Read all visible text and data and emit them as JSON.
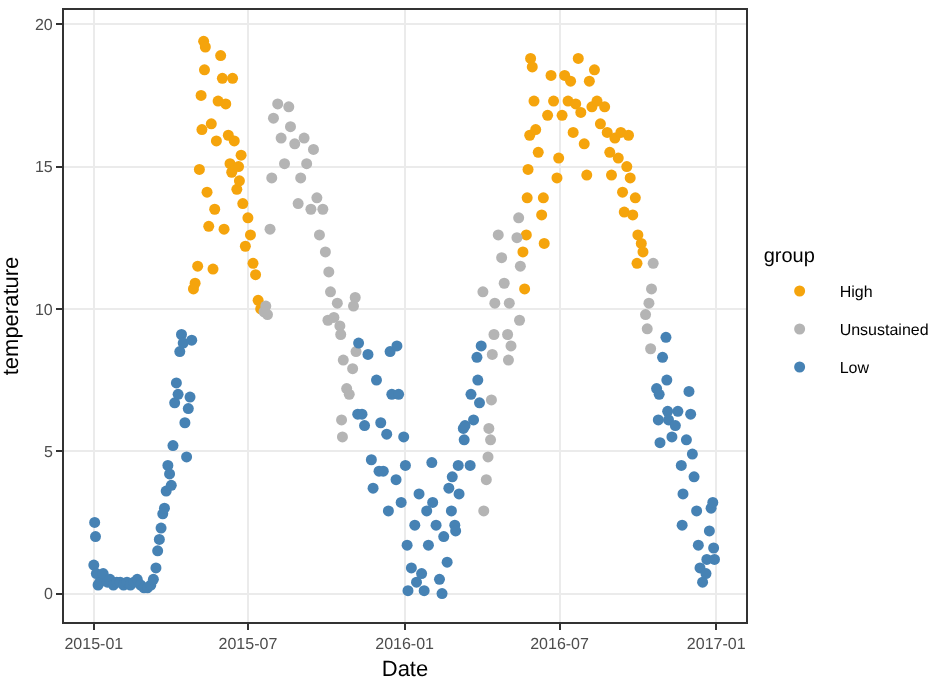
{
  "chart_data": {
    "type": "scatter",
    "xlabel": "Date",
    "ylabel": "temperature",
    "legend_title": "group",
    "legend": "right",
    "grid": true,
    "marker": "circle",
    "xlim": [
      "2014-11-27",
      "2017-02-05"
    ],
    "ylim": [
      -1,
      20.5
    ],
    "xticks": [
      {
        "value": "2015-01-01",
        "label": "2015-01"
      },
      {
        "value": "2015-07-01",
        "label": "2015-07"
      },
      {
        "value": "2016-01-01",
        "label": "2016-01"
      },
      {
        "value": "2016-07-01",
        "label": "2016-07"
      },
      {
        "value": "2017-01-01",
        "label": "2017-01"
      }
    ],
    "yticks": [
      0,
      5,
      10,
      15,
      20
    ],
    "series": [
      {
        "name": "High",
        "color": "#f5a40c",
        "x": [
          "2015-04-28",
          "2015-04-30",
          "2015-05-03",
          "2015-05-05",
          "2015-05-07",
          "2015-05-08",
          "2015-05-10",
          "2015-05-11",
          "2015-05-12",
          "2015-05-14",
          "2015-05-16",
          "2015-05-19",
          "2015-05-21",
          "2015-05-23",
          "2015-05-25",
          "2015-05-27",
          "2015-05-30",
          "2015-06-01",
          "2015-06-03",
          "2015-06-05",
          "2015-06-08",
          "2015-06-10",
          "2015-06-12",
          "2015-06-13",
          "2015-06-15",
          "2015-06-18",
          "2015-06-20",
          "2015-06-21",
          "2015-06-23",
          "2015-06-25",
          "2015-06-28",
          "2015-07-01",
          "2015-07-04",
          "2015-07-07",
          "2015-07-10",
          "2015-07-13",
          "2015-07-16",
          "2016-05-19",
          "2016-05-21",
          "2016-05-23",
          "2016-05-24",
          "2016-05-25",
          "2016-05-27",
          "2016-05-28",
          "2016-05-30",
          "2016-06-01",
          "2016-06-03",
          "2016-06-06",
          "2016-06-10",
          "2016-06-12",
          "2016-06-13",
          "2016-06-17",
          "2016-06-21",
          "2016-06-24",
          "2016-06-28",
          "2016-06-30",
          "2016-07-04",
          "2016-07-07",
          "2016-07-11",
          "2016-07-14",
          "2016-07-17",
          "2016-07-20",
          "2016-07-23",
          "2016-07-26",
          "2016-07-30",
          "2016-08-02",
          "2016-08-05",
          "2016-08-08",
          "2016-08-11",
          "2016-08-14",
          "2016-08-18",
          "2016-08-23",
          "2016-08-26",
          "2016-08-29",
          "2016-08-31",
          "2016-09-04",
          "2016-09-08",
          "2016-09-11",
          "2016-09-13",
          "2016-09-15",
          "2016-09-18",
          "2016-09-20",
          "2016-09-22",
          "2016-09-25",
          "2016-09-28",
          "2016-09-30",
          "2016-10-01",
          "2016-10-05",
          "2016-10-07"
        ],
        "values": [
          10.7,
          10.9,
          11.5,
          14.9,
          17.5,
          16.3,
          19.4,
          18.4,
          19.2,
          14.1,
          12.9,
          16.5,
          11.4,
          13.5,
          15.9,
          17.3,
          18.9,
          18.1,
          12.8,
          17.2,
          16.1,
          15.1,
          14.8,
          18.1,
          15.9,
          14.2,
          15.0,
          14.5,
          15.4,
          13.7,
          12.2,
          13.2,
          12.6,
          11.6,
          11.2,
          10.3,
          10.0,
          12.0,
          10.7,
          12.6,
          13.9,
          14.9,
          16.1,
          18.8,
          18.5,
          17.3,
          16.3,
          15.5,
          13.3,
          13.9,
          12.3,
          16.8,
          18.2,
          17.3,
          14.6,
          15.3,
          16.8,
          18.2,
          17.3,
          18.0,
          16.2,
          17.2,
          18.8,
          16.9,
          15.8,
          14.7,
          18.0,
          17.1,
          18.4,
          17.3,
          16.5,
          17.1,
          16.2,
          15.5,
          14.7,
          16.0,
          15.3,
          16.2,
          14.1,
          13.4,
          15.0,
          16.1,
          14.6,
          13.3,
          13.9,
          11.6,
          12.6,
          12.3,
          12.0
        ]
      },
      {
        "name": "Unsustained",
        "color": "#b4b4b4",
        "x": [
          "2015-07-20",
          "2015-07-22",
          "2015-07-24",
          "2015-07-27",
          "2015-07-29",
          "2015-07-31",
          "2015-08-05",
          "2015-08-09",
          "2015-08-13",
          "2015-08-18",
          "2015-08-20",
          "2015-08-25",
          "2015-08-29",
          "2015-09-01",
          "2015-09-05",
          "2015-09-08",
          "2015-09-13",
          "2015-09-16",
          "2015-09-20",
          "2015-09-23",
          "2015-09-27",
          "2015-09-30",
          "2015-10-03",
          "2015-10-04",
          "2015-10-06",
          "2015-10-10",
          "2015-10-14",
          "2015-10-17",
          "2015-10-18",
          "2015-10-19",
          "2015-10-20",
          "2015-10-21",
          "2015-10-25",
          "2015-10-28",
          "2015-11-01",
          "2015-11-02",
          "2015-11-04",
          "2015-11-05",
          "2016-04-02",
          "2016-04-03",
          "2016-04-06",
          "2016-04-08",
          "2016-04-09",
          "2016-04-11",
          "2016-04-12",
          "2016-04-13",
          "2016-04-15",
          "2016-04-16",
          "2016-04-20",
          "2016-04-24",
          "2016-04-27",
          "2016-05-01",
          "2016-05-02",
          "2016-05-03",
          "2016-05-05",
          "2016-05-12",
          "2016-05-14",
          "2016-05-15",
          "2016-05-16",
          "2016-10-10",
          "2016-10-12",
          "2016-10-14",
          "2016-10-16",
          "2016-10-17",
          "2016-10-19"
        ],
        "values": [
          9.9,
          10.1,
          9.8,
          12.8,
          14.6,
          16.7,
          17.2,
          16.0,
          15.1,
          17.1,
          16.4,
          15.8,
          13.7,
          14.6,
          16.0,
          15.1,
          13.5,
          15.6,
          13.9,
          12.6,
          13.5,
          12.0,
          9.6,
          11.3,
          10.6,
          9.7,
          10.2,
          9.4,
          9.1,
          6.1,
          5.5,
          8.2,
          7.2,
          7.0,
          7.9,
          10.1,
          10.4,
          8.5,
          10.6,
          2.9,
          4.0,
          4.8,
          5.8,
          5.4,
          6.8,
          8.4,
          9.1,
          10.2,
          12.6,
          11.8,
          10.9,
          9.1,
          8.2,
          10.2,
          8.7,
          12.5,
          13.2,
          9.6,
          11.5,
          9.8,
          9.3,
          10.2,
          8.6,
          10.7,
          11.6
        ]
      },
      {
        "name": "Low",
        "color": "#4682b4",
        "x": [
          "2015-01-01",
          "2015-01-02",
          "2015-01-03",
          "2015-01-04",
          "2015-01-06",
          "2015-01-08",
          "2015-01-12",
          "2015-01-17",
          "2015-01-20",
          "2015-01-24",
          "2015-01-28",
          "2015-02-01",
          "2015-02-05",
          "2015-02-09",
          "2015-02-13",
          "2015-02-17",
          "2015-02-21",
          "2015-02-25",
          "2015-03-01",
          "2015-03-05",
          "2015-03-09",
          "2015-03-12",
          "2015-03-15",
          "2015-03-17",
          "2015-03-19",
          "2015-03-21",
          "2015-03-23",
          "2015-03-25",
          "2015-03-27",
          "2015-03-29",
          "2015-03-31",
          "2015-04-02",
          "2015-04-04",
          "2015-04-06",
          "2015-04-08",
          "2015-04-10",
          "2015-04-12",
          "2015-04-14",
          "2015-04-16",
          "2015-04-18",
          "2015-04-20",
          "2015-04-22",
          "2015-04-24",
          "2015-04-26",
          "2015-11-07",
          "2015-11-08",
          "2015-11-12",
          "2015-11-15",
          "2015-11-19",
          "2015-11-23",
          "2015-11-25",
          "2015-11-29",
          "2015-12-02",
          "2015-12-04",
          "2015-12-07",
          "2015-12-11",
          "2015-12-13",
          "2015-12-15",
          "2015-12-17",
          "2015-12-22",
          "2015-12-23",
          "2015-12-25",
          "2015-12-28",
          "2015-12-31",
          "2016-01-02",
          "2016-01-04",
          "2016-01-05",
          "2016-01-09",
          "2016-01-13",
          "2016-01-15",
          "2016-01-18",
          "2016-01-21",
          "2016-01-24",
          "2016-01-27",
          "2016-01-29",
          "2016-02-02",
          "2016-02-03",
          "2016-02-07",
          "2016-02-11",
          "2016-02-14",
          "2016-02-16",
          "2016-02-20",
          "2016-02-22",
          "2016-02-25",
          "2016-02-26",
          "2016-02-29",
          "2016-03-01",
          "2016-03-04",
          "2016-03-05",
          "2016-03-10",
          "2016-03-11",
          "2016-03-12",
          "2016-03-18",
          "2016-03-19",
          "2016-03-22",
          "2016-03-26",
          "2016-03-27",
          "2016-03-29",
          "2016-03-31",
          "2016-10-23",
          "2016-10-25",
          "2016-10-26",
          "2016-10-27",
          "2016-10-30",
          "2016-11-03",
          "2016-11-04",
          "2016-11-05",
          "2016-11-06",
          "2016-11-10",
          "2016-11-14",
          "2016-11-17",
          "2016-11-21",
          "2016-11-22",
          "2016-11-23",
          "2016-11-27",
          "2016-11-30",
          "2016-12-02",
          "2016-12-04",
          "2016-12-06",
          "2016-12-09",
          "2016-12-11",
          "2016-12-13",
          "2016-12-16",
          "2016-12-20",
          "2016-12-21",
          "2016-12-24",
          "2016-12-26",
          "2016-12-28",
          "2016-12-29",
          "2016-12-30"
        ],
        "values": [
          1.0,
          2.5,
          2.0,
          0.7,
          0.3,
          0.4,
          0.7,
          0.4,
          0.5,
          0.3,
          0.4,
          0.4,
          0.3,
          0.4,
          0.3,
          0.4,
          0.5,
          0.3,
          0.2,
          0.2,
          0.3,
          0.5,
          0.9,
          1.5,
          1.9,
          2.3,
          2.8,
          3.0,
          3.6,
          4.5,
          4.2,
          3.8,
          5.2,
          6.7,
          7.4,
          7.0,
          8.5,
          9.1,
          8.8,
          6.0,
          4.8,
          6.5,
          6.9,
          8.9,
          6.3,
          8.8,
          6.3,
          5.9,
          8.4,
          4.7,
          3.7,
          7.5,
          4.3,
          6.0,
          4.3,
          5.6,
          2.9,
          8.5,
          7.0,
          4.0,
          8.7,
          7.0,
          3.2,
          5.5,
          4.5,
          1.7,
          0.1,
          0.9,
          2.4,
          0.4,
          3.5,
          0.7,
          0.1,
          2.9,
          1.7,
          4.6,
          3.2,
          2.4,
          0.5,
          0.0,
          2.0,
          1.1,
          3.7,
          2.9,
          4.1,
          2.4,
          2.2,
          4.5,
          3.5,
          5.8,
          5.4,
          5.9,
          4.5,
          7.0,
          6.1,
          8.3,
          7.5,
          6.7,
          8.7,
          7.2,
          6.1,
          7.0,
          5.3,
          8.3,
          9.0,
          7.5,
          6.4,
          6.1,
          5.5,
          5.9,
          6.4,
          4.5,
          2.4,
          3.5,
          5.4,
          7.1,
          6.3,
          4.9,
          4.1,
          2.9,
          1.7,
          0.9,
          0.4,
          0.7,
          1.2,
          2.2,
          3.0,
          3.2,
          1.6,
          1.2
        ]
      }
    ]
  }
}
